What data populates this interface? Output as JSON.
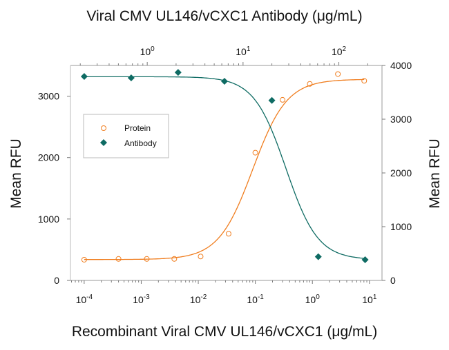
{
  "chart_data": {
    "type": "scatter",
    "title": "Viral CMV UL146/vCXC1 Antibody (μg/mL)",
    "xlabel": "Recombinant Viral CMV UL146/vCXC1 (μg/mL)",
    "ylabel_left": "Mean RFU",
    "ylabel_right": "Mean RFU",
    "x_bottom": {
      "scale": "log",
      "range": [
        5.75e-05,
        16.6
      ],
      "ticks": [
        {
          "base": "10",
          "exp": "-4"
        },
        {
          "base": "10",
          "exp": "-3"
        },
        {
          "base": "10",
          "exp": "-2"
        },
        {
          "base": "10",
          "exp": "-1"
        },
        {
          "base": "10",
          "exp": "0"
        },
        {
          "base": "10",
          "exp": "1"
        }
      ],
      "tick_values": [
        0.0001,
        0.001,
        0.01,
        0.1,
        1,
        10
      ]
    },
    "x_top": {
      "scale": "log",
      "range": [
        0.158,
        282
      ],
      "ticks": [
        {
          "base": "10",
          "exp": "0"
        },
        {
          "base": "10",
          "exp": "1"
        },
        {
          "base": "10",
          "exp": "2"
        }
      ],
      "tick_values": [
        1,
        10,
        100
      ]
    },
    "y_left": {
      "range": [
        0,
        3500
      ],
      "ticks": [
        "0",
        "1000",
        "2000",
        "3000"
      ],
      "tick_values": [
        0,
        1000,
        2000,
        3000
      ]
    },
    "y_right": {
      "range": [
        0,
        4000
      ],
      "ticks": [
        "0",
        "1000",
        "2000",
        "3000",
        "4000"
      ],
      "tick_values": [
        0,
        1000,
        2000,
        3000,
        4000
      ]
    },
    "legend": {
      "placement": "upper-left"
    },
    "grid": false,
    "series": [
      {
        "name": "Protein",
        "axis": "bottom-left",
        "color": "#f07d1e",
        "marker": "open-circle",
        "x": [
          0.0001,
          0.0004,
          0.00125,
          0.0038,
          0.011,
          0.034,
          0.1,
          0.3,
          0.9,
          2.8,
          8.1
        ],
        "y": [
          337,
          350,
          350,
          350,
          390,
          760,
          2080,
          2940,
          3200,
          3360,
          3250
        ]
      },
      {
        "name": "Antibody",
        "axis": "top-right",
        "color": "#0e6b63",
        "marker": "filled-diamond",
        "x": [
          0.22,
          0.68,
          2.1,
          6.4,
          20,
          61,
          188
        ],
        "y": [
          3795,
          3770,
          3870,
          3705,
          3350,
          440,
          385
        ]
      }
    ]
  }
}
